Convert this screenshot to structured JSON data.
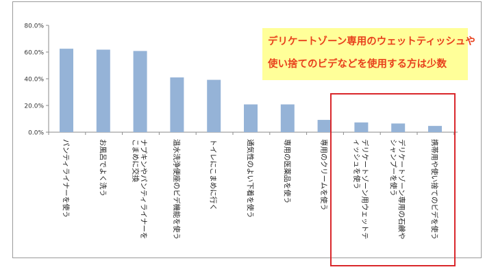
{
  "chart_data": {
    "type": "bar",
    "categories": [
      "パンティライナーを使う",
      "お風呂でよく洗う",
      "ナプキンやパンティライナーをこまめに交換",
      "温水洗浄便座のビデ機能を使う",
      "トイレにこまめに行く",
      "通気性のよい下着を使う",
      "専用の医薬品を使う",
      "専用のクリームを使う",
      "デリケートゾーン用ウェットティッシュを使う",
      "デリケートゾーン専用の石鹸やシャンプーを使う",
      "携帯用や使い捨てのビデを使う"
    ],
    "values": [
      62.5,
      61.8,
      60.8,
      41.0,
      39.2,
      20.8,
      20.8,
      9.2,
      7.3,
      6.5,
      4.7
    ],
    "yticks": [
      "0.0%",
      "20.0%",
      "40.0%",
      "60.0%",
      "80.0%"
    ],
    "ylim": [
      0,
      80
    ],
    "bar_color": "#95b3d7",
    "grid": false,
    "highlight_categories": [
      8,
      9,
      10
    ],
    "highlight_color": "#d9262a",
    "annotation": {
      "line1": "デリケートゾーン専用のウェットティッシュや",
      "line2": "使い捨てのビデなどを使用する方は少数",
      "background": "#ffff99",
      "text_color": "#e8401c"
    }
  }
}
